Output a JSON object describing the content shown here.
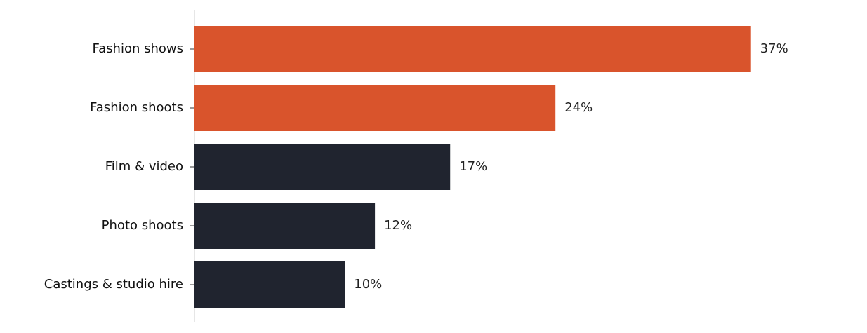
{
  "chart_data": {
    "type": "barh",
    "categories": [
      "Fashion shows",
      "Fashion shoots",
      "Film & video",
      "Photo shoots",
      "Castings & studio hire"
    ],
    "values": [
      37,
      24,
      17,
      12,
      10
    ],
    "value_labels": [
      "37%",
      "24%",
      "17%",
      "12%",
      "10%"
    ],
    "colors": [
      "#d9542c",
      "#d9542c",
      "#20242f",
      "#20242f",
      "#20242f"
    ],
    "xlim": [
      0,
      40
    ]
  }
}
